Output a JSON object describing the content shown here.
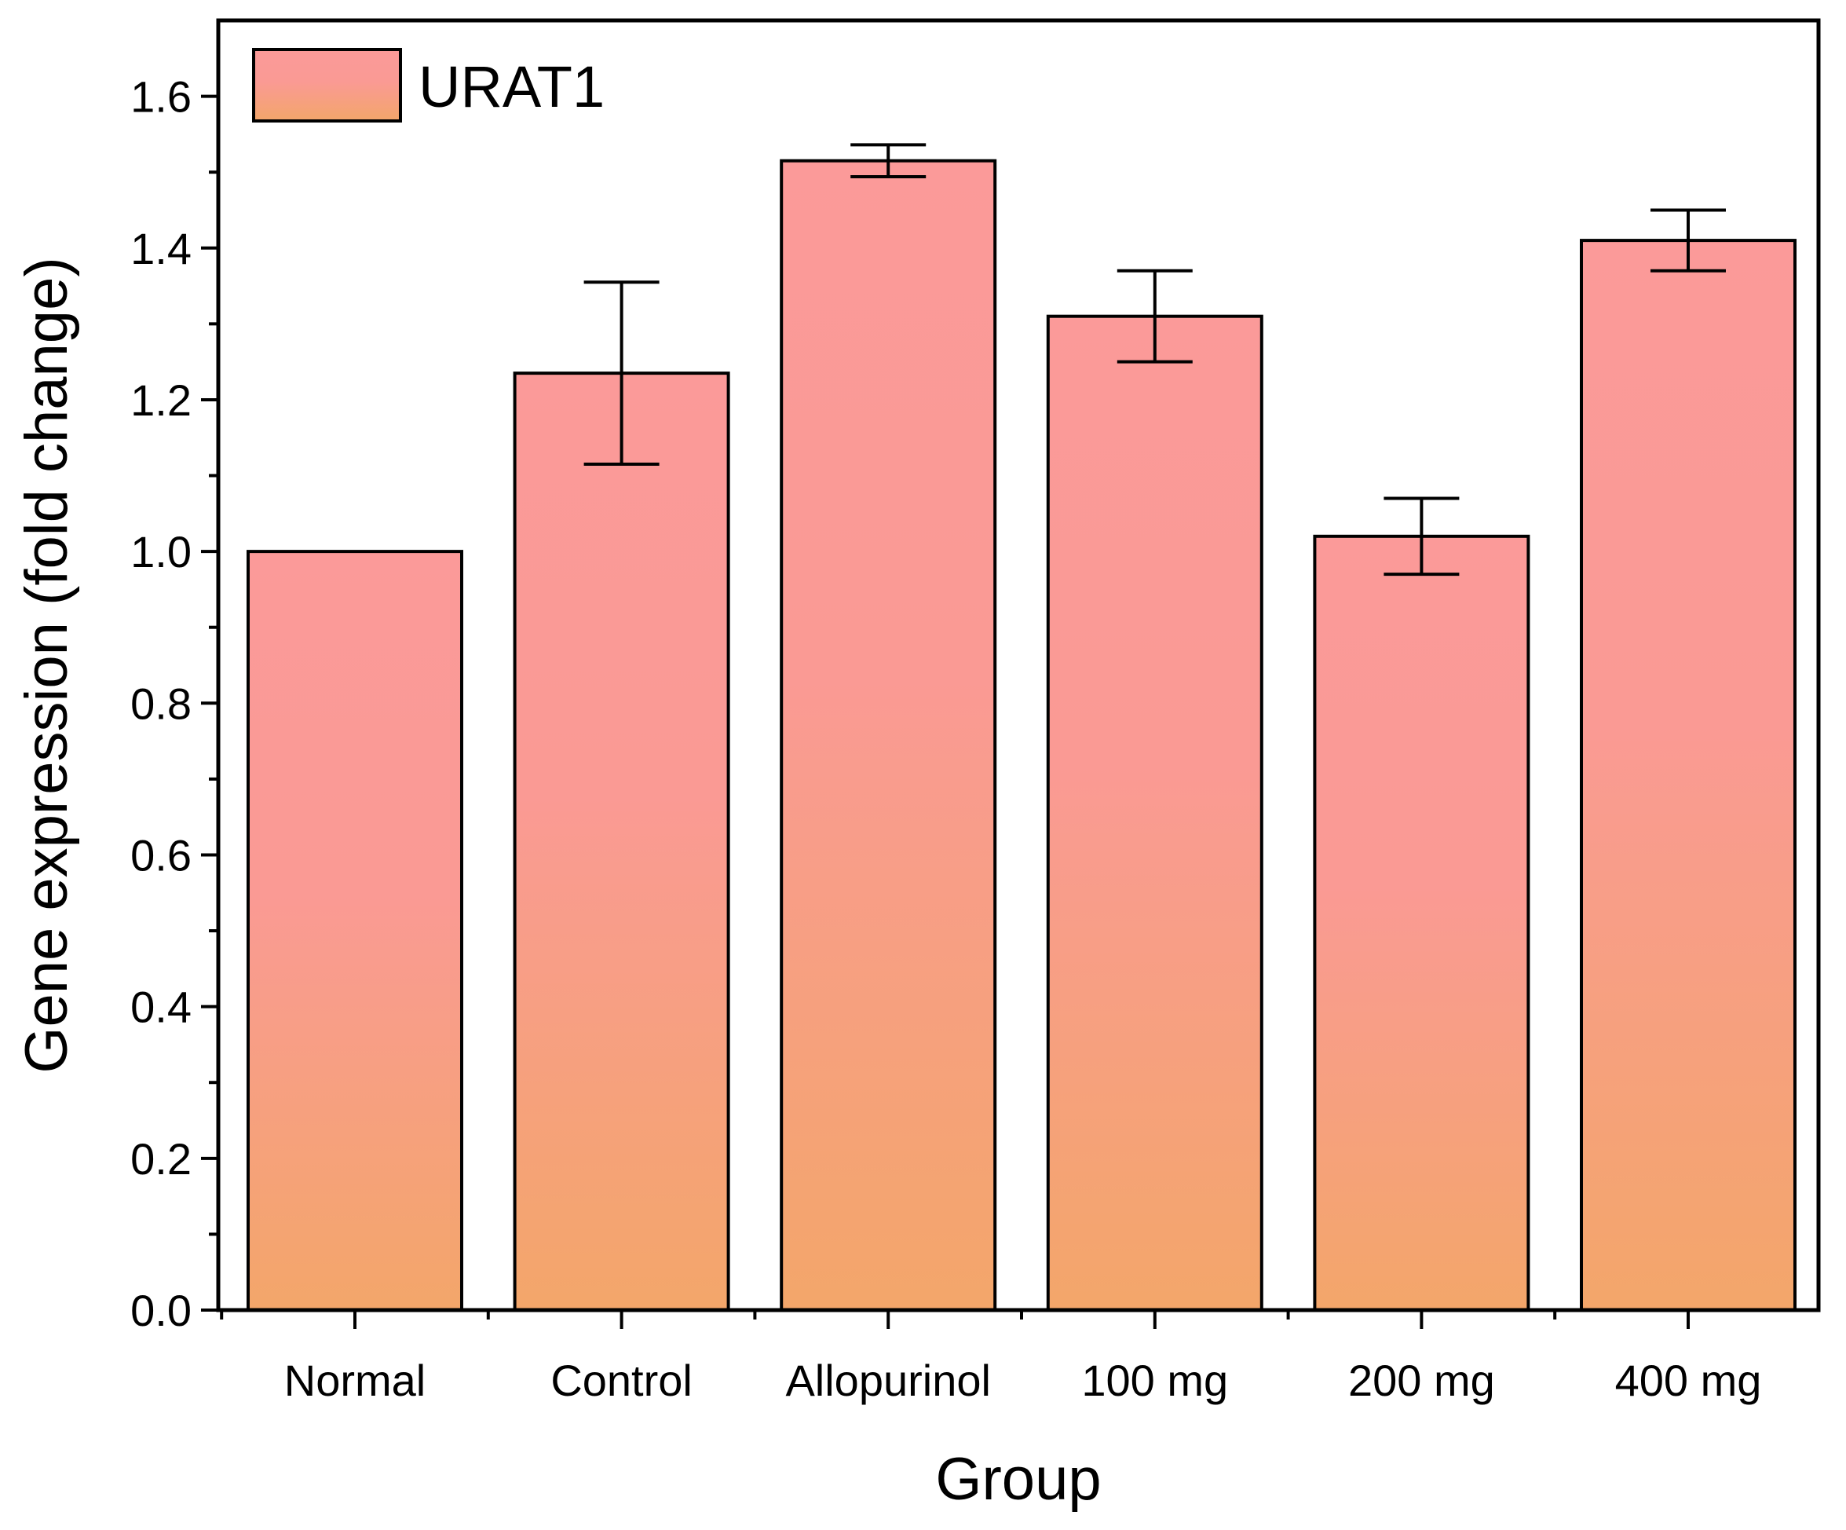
{
  "chart_data": {
    "type": "bar",
    "title": "",
    "xlabel": "Group",
    "ylabel": "Gene expression (fold change)",
    "categories": [
      "Normal",
      "Control",
      "Allopurinol",
      "100 mg",
      "200 mg",
      "400 mg"
    ],
    "series": [
      {
        "name": "URAT1",
        "values": [
          1.0,
          1.235,
          1.515,
          1.31,
          1.02,
          1.41
        ],
        "errors": [
          0.0,
          0.12,
          0.021,
          0.06,
          0.05,
          0.04
        ]
      }
    ],
    "ylim": [
      0,
      1.7
    ],
    "yticks": [
      "0.0",
      "0.2",
      "0.4",
      "0.6",
      "0.8",
      "1.0",
      "1.2",
      "1.4",
      "1.6"
    ],
    "legend_position": "top-left",
    "colors": {
      "bar_top": "#fb9a99",
      "bar_mid": "#fa9a94",
      "bar_bottom": "#f3a66a",
      "stroke": "#000000"
    }
  }
}
